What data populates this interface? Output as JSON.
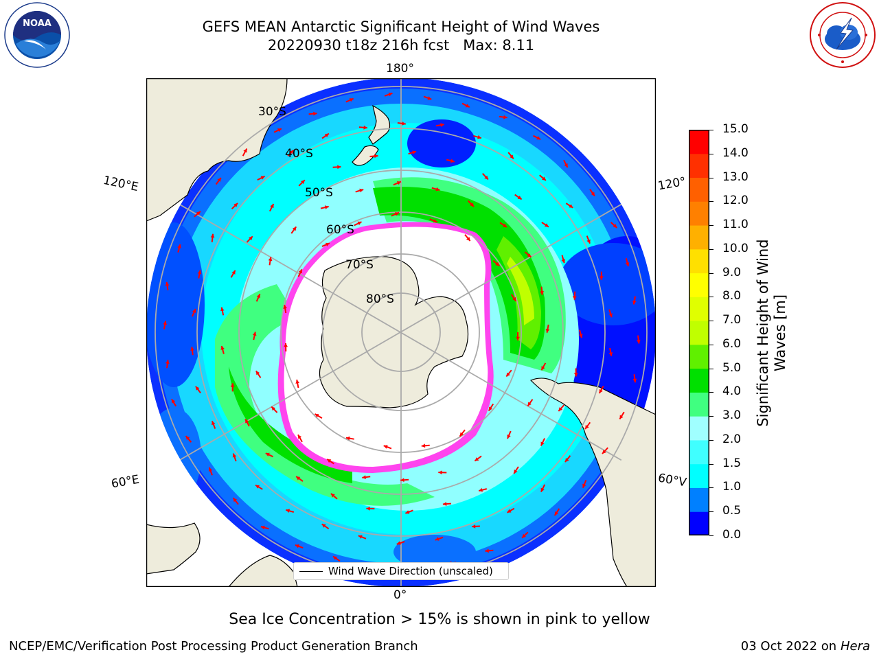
{
  "title": {
    "line1": "GEFS MEAN Antarctic Significant Height of Wind Waves",
    "line2": "20220930 t18z 216h fcst   Max: 8.11"
  },
  "logos": {
    "left_icon": "noaa-logo",
    "left_text": "NOAA",
    "right_icon": "national-weather-service-logo"
  },
  "map": {
    "longitude_labels": {
      "top": "180°",
      "bottom": "0°",
      "upper_left": "120°E",
      "lower_left": "60°E",
      "upper_right": "120°",
      "lower_right": "60°V"
    },
    "latitude_labels": [
      "30°S",
      "40°S",
      "50°S",
      "60°S",
      "70°S",
      "80°S"
    ],
    "legend_text": "Wind Wave Direction (unscaled)",
    "colors": {
      "land": "#eeecdc",
      "sea_ice": "#ff44ee",
      "arrow": "#ff0000"
    }
  },
  "colorbar": {
    "label": "Significant Height of Wind Waves [m]",
    "ticks": [
      "15.0",
      "14.0",
      "13.0",
      "12.0",
      "11.0",
      "10.0",
      "9.0",
      "8.0",
      "7.0",
      "6.0",
      "5.0",
      "4.0",
      "3.0",
      "2.0",
      "1.5",
      "1.0",
      "0.5",
      "0.0"
    ],
    "colors_bottom_to_top": [
      "#0000ff",
      "#0080ff",
      "#00ffff",
      "#40ffff",
      "#a0ffff",
      "#40ff80",
      "#00e000",
      "#60f000",
      "#c0ff00",
      "#e0ff00",
      "#ffff00",
      "#ffe000",
      "#ffb000",
      "#ff8000",
      "#ff6000",
      "#ff3000",
      "#ff0000"
    ]
  },
  "caption": "Sea Ice Concentration > 15% is shown in pink to yellow",
  "footer": {
    "left": "NCEP/EMC/Verification Post Processing Product Generation Branch",
    "right_date": "03 Oct 2022 on ",
    "right_host": "Hera"
  }
}
